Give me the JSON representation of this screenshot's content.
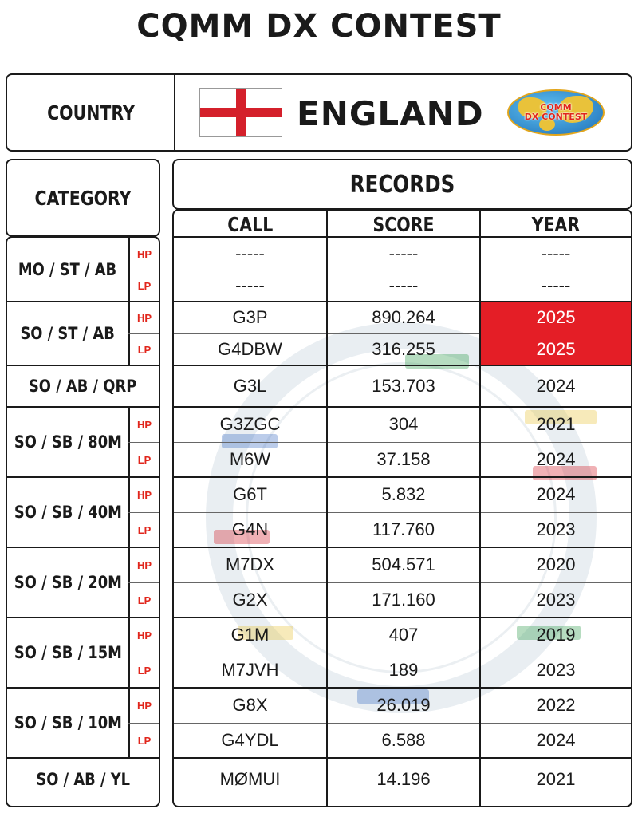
{
  "title": "CQMM DX CONTEST",
  "country": {
    "label": "COUNTRY",
    "name": "ENGLAND",
    "flag_icon": "england-flag-icon",
    "logo_text_1": "CQMM",
    "logo_text_2": "DX CONTEST"
  },
  "category_label": "CATEGORY",
  "records_label": "RECORDS",
  "columns": [
    "CALL",
    "SCORE",
    "YEAR"
  ],
  "highlight_color": "#e41e26",
  "power_color": "#e1261c",
  "categories": [
    {
      "name": "MO / ST / AB",
      "rows": [
        {
          "power": "HP",
          "call": "-----",
          "score": "-----",
          "year": "-----",
          "highlight": false
        },
        {
          "power": "LP",
          "call": "-----",
          "score": "-----",
          "year": "-----",
          "highlight": false
        }
      ]
    },
    {
      "name": "SO / ST / AB",
      "rows": [
        {
          "power": "HP",
          "call": "G3P",
          "score": "890.264",
          "year": "2025",
          "highlight": true
        },
        {
          "power": "LP",
          "call": "G4DBW",
          "score": "316.255",
          "year": "2025",
          "highlight": true
        }
      ]
    },
    {
      "name": "SO / AB / QRP",
      "rows": [
        {
          "power": "",
          "call": "G3L",
          "score": "153.703",
          "year": "2024",
          "highlight": false
        }
      ]
    },
    {
      "name": "SO / SB / 80M",
      "rows": [
        {
          "power": "HP",
          "call": "G3ZGC",
          "score": "304",
          "year": "2021",
          "highlight": false
        },
        {
          "power": "LP",
          "call": "M6W",
          "score": "37.158",
          "year": "2024",
          "highlight": false
        }
      ]
    },
    {
      "name": "SO / SB / 40M",
      "rows": [
        {
          "power": "HP",
          "call": "G6T",
          "score": "5.832",
          "year": "2024",
          "highlight": false
        },
        {
          "power": "LP",
          "call": "G4N",
          "score": "117.760",
          "year": "2023",
          "highlight": false
        }
      ]
    },
    {
      "name": "SO / SB / 20M",
      "rows": [
        {
          "power": "HP",
          "call": "M7DX",
          "score": "504.571",
          "year": "2020",
          "highlight": false
        },
        {
          "power": "LP",
          "call": "G2X",
          "score": "171.160",
          "year": "2023",
          "highlight": false
        }
      ]
    },
    {
      "name": "SO / SB / 15M",
      "rows": [
        {
          "power": "HP",
          "call": "G1M",
          "score": "407",
          "year": "2019",
          "highlight": false
        },
        {
          "power": "LP",
          "call": "M7JVH",
          "score": "189",
          "year": "2023",
          "highlight": false
        }
      ]
    },
    {
      "name": "SO / SB / 10M",
      "rows": [
        {
          "power": "HP",
          "call": "G8X",
          "score": "26.019",
          "year": "2022",
          "highlight": false
        },
        {
          "power": "LP",
          "call": "G4YDL",
          "score": "6.588",
          "year": "2024",
          "highlight": false
        }
      ]
    },
    {
      "name": "SO / AB / YL",
      "rows": [
        {
          "power": "",
          "call": "MØMUI",
          "score": "14.196",
          "year": "2021",
          "highlight": false
        }
      ]
    }
  ]
}
